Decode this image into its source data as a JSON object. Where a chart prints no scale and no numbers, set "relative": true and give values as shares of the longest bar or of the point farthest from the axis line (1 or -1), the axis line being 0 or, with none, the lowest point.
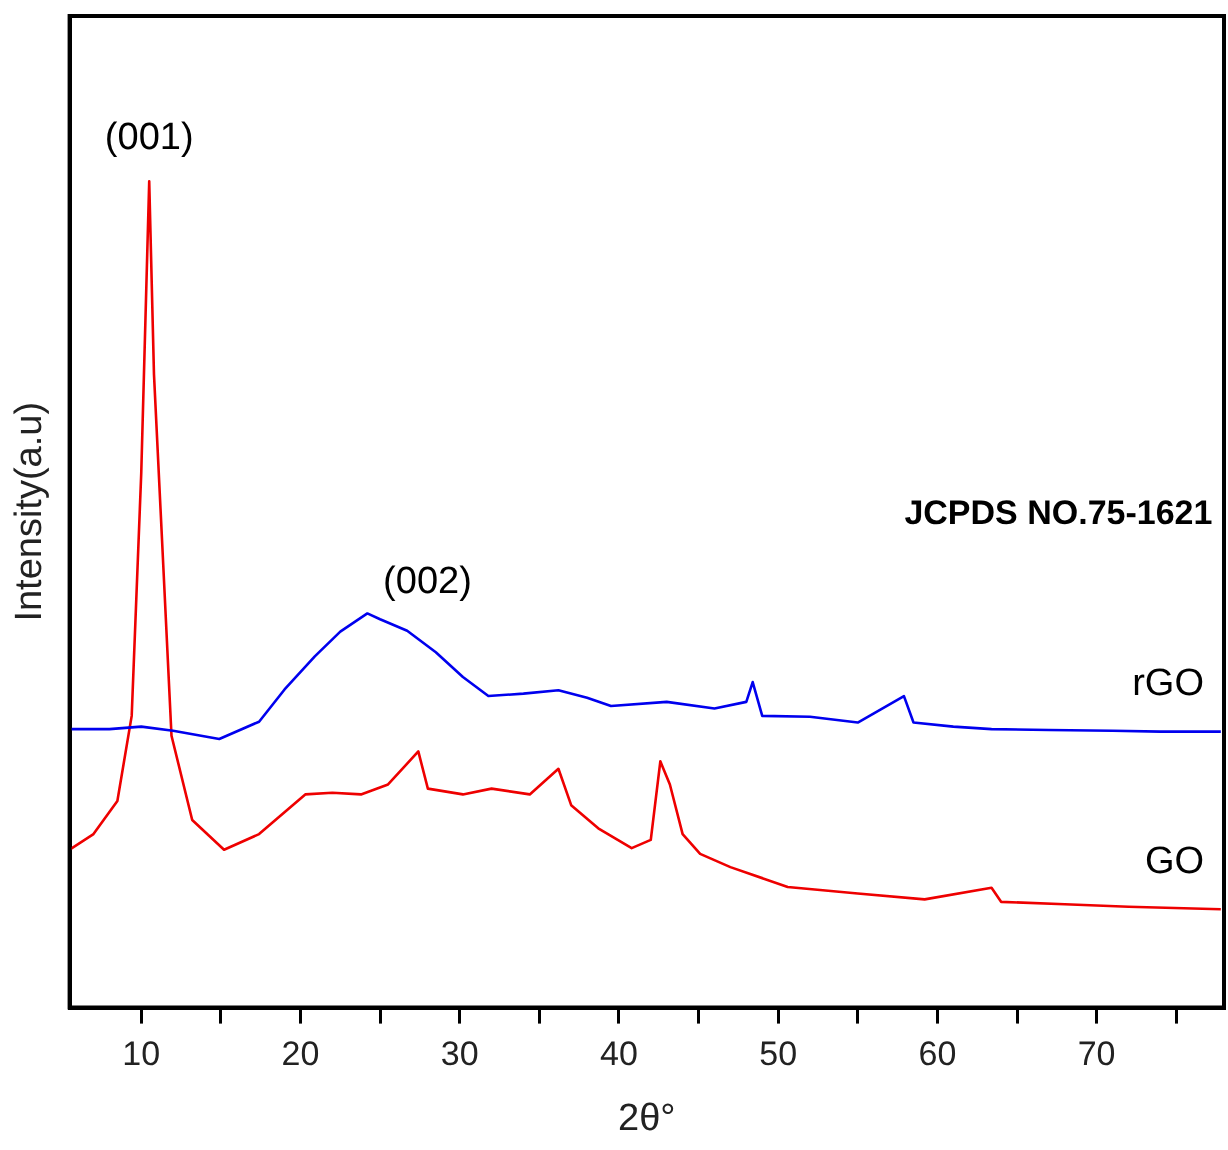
{
  "chart_data": {
    "type": "line",
    "xlabel": "2θ°",
    "ylabel": "Intensity(a.u)",
    "relative": true,
    "xlim": [
      5.5,
      78
    ],
    "xticks": [
      10,
      {
        "value": 15,
        "label": null
      },
      20,
      {
        "value": 25,
        "label": null
      },
      30,
      {
        "value": 35,
        "label": null
      },
      40,
      {
        "value": 45,
        "label": null
      },
      50,
      {
        "value": 55,
        "label": null
      },
      60,
      {
        "value": 65,
        "label": null
      },
      70,
      {
        "value": 75,
        "label": null
      }
    ],
    "grid": false,
    "legend": false,
    "marker": "none",
    "line_style": "solid",
    "series": [
      {
        "name": "rGO",
        "color": "#0000ee",
        "x": [
          5.5,
          8,
          10,
          12,
          14.9,
          17.4,
          19,
          20.9,
          22.5,
          24.2,
          25,
          26.7,
          28.5,
          30.2,
          31.8,
          34,
          36.2,
          38,
          39.5,
          43,
          46,
          48,
          48.4,
          49,
          52,
          55,
          57.9,
          58.5,
          61,
          63.4,
          67,
          71,
          74,
          77.8
        ],
        "values": [
          0.337,
          0.337,
          0.34,
          0.335,
          0.325,
          0.346,
          0.385,
          0.425,
          0.455,
          0.477,
          0.47,
          0.456,
          0.43,
          0.4,
          0.377,
          0.38,
          0.384,
          0.375,
          0.365,
          0.37,
          0.362,
          0.37,
          0.394,
          0.353,
          0.352,
          0.345,
          0.377,
          0.345,
          0.34,
          0.337,
          0.336,
          0.335,
          0.334,
          0.334
        ]
      },
      {
        "name": "GO",
        "color": "#ee0000",
        "x": [
          5.5,
          7,
          8.5,
          9.4,
          10,
          10.5,
          10.8,
          11.3,
          11.9,
          13.2,
          15.2,
          17.4,
          20.3,
          22,
          23.8,
          25.5,
          27.4,
          28,
          30.2,
          32,
          34.4,
          36.2,
          37,
          38.7,
          40.8,
          42,
          42.6,
          43.2,
          44,
          45.1,
          47,
          50.6,
          55,
          59.2,
          63.4,
          64,
          68,
          72,
          77.8
        ],
        "values": [
          0.191,
          0.21,
          0.25,
          0.353,
          0.647,
          1.0,
          0.766,
          0.568,
          0.329,
          0.227,
          0.191,
          0.21,
          0.258,
          0.26,
          0.258,
          0.27,
          0.31,
          0.265,
          0.258,
          0.265,
          0.258,
          0.289,
          0.245,
          0.217,
          0.193,
          0.203,
          0.298,
          0.27,
          0.21,
          0.186,
          0.17,
          0.146,
          0.138,
          0.131,
          0.145,
          0.128,
          0.125,
          0.122,
          0.119
        ]
      }
    ],
    "annotations": [
      {
        "text": "(001)",
        "x": 10.5,
        "y": 1.0
      },
      "(002)",
      "JCPDS NO.75-1621"
    ]
  }
}
